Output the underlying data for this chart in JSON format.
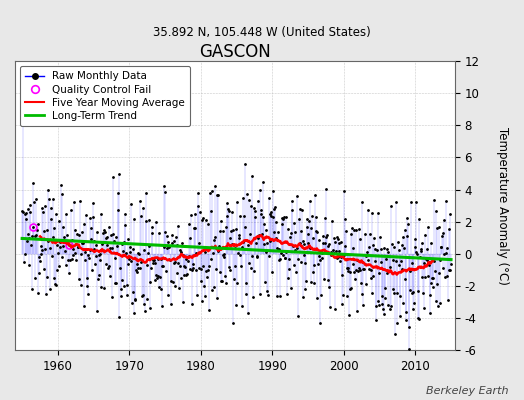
{
  "title": "GASCON",
  "subtitle": "35.892 N, 105.448 W (United States)",
  "ylabel": "Temperature Anomaly (°C)",
  "watermark": "Berkeley Earth",
  "ylim": [
    -6,
    12
  ],
  "yticks": [
    -6,
    -4,
    -2,
    0,
    2,
    4,
    6,
    8,
    10,
    12
  ],
  "year_start": 1954,
  "year_end": 2015,
  "xticks": [
    1960,
    1970,
    1980,
    1990,
    2000,
    2010
  ],
  "line_color": "#0000ff",
  "ma_color": "#ff0000",
  "trend_color": "#00bb00",
  "qc_color": "#ff00ff",
  "background_color": "#e8e8e8",
  "plot_bg_color": "#ffffff",
  "grid_color": "#bbbbbb"
}
